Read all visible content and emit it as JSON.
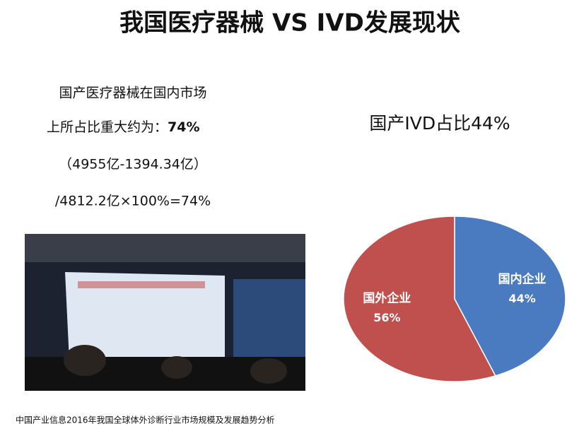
{
  "title": "我国医疗器械  VS   IVD发展现状",
  "left_text": {
    "line1": "国产医疗器械在国内市场",
    "line2": "上所占比重大约为：",
    "line2_bold": "74%",
    "line3": "（4955亿-1394.34亿）",
    "line4": "/4812.2亿×100%=74%"
  },
  "right_text": "国产IVD占比44%",
  "source": "中国产业信息2016年我国全球体外诊断行业市场规模及发展趋势分析",
  "chart_data": {
    "type": "pie",
    "categories": [
      "国内企业",
      "国外企业"
    ],
    "values": [
      44,
      56
    ],
    "value_labels": [
      "44%",
      "56%"
    ],
    "colors": [
      "#4a7bc0",
      "#c0504d"
    ]
  }
}
